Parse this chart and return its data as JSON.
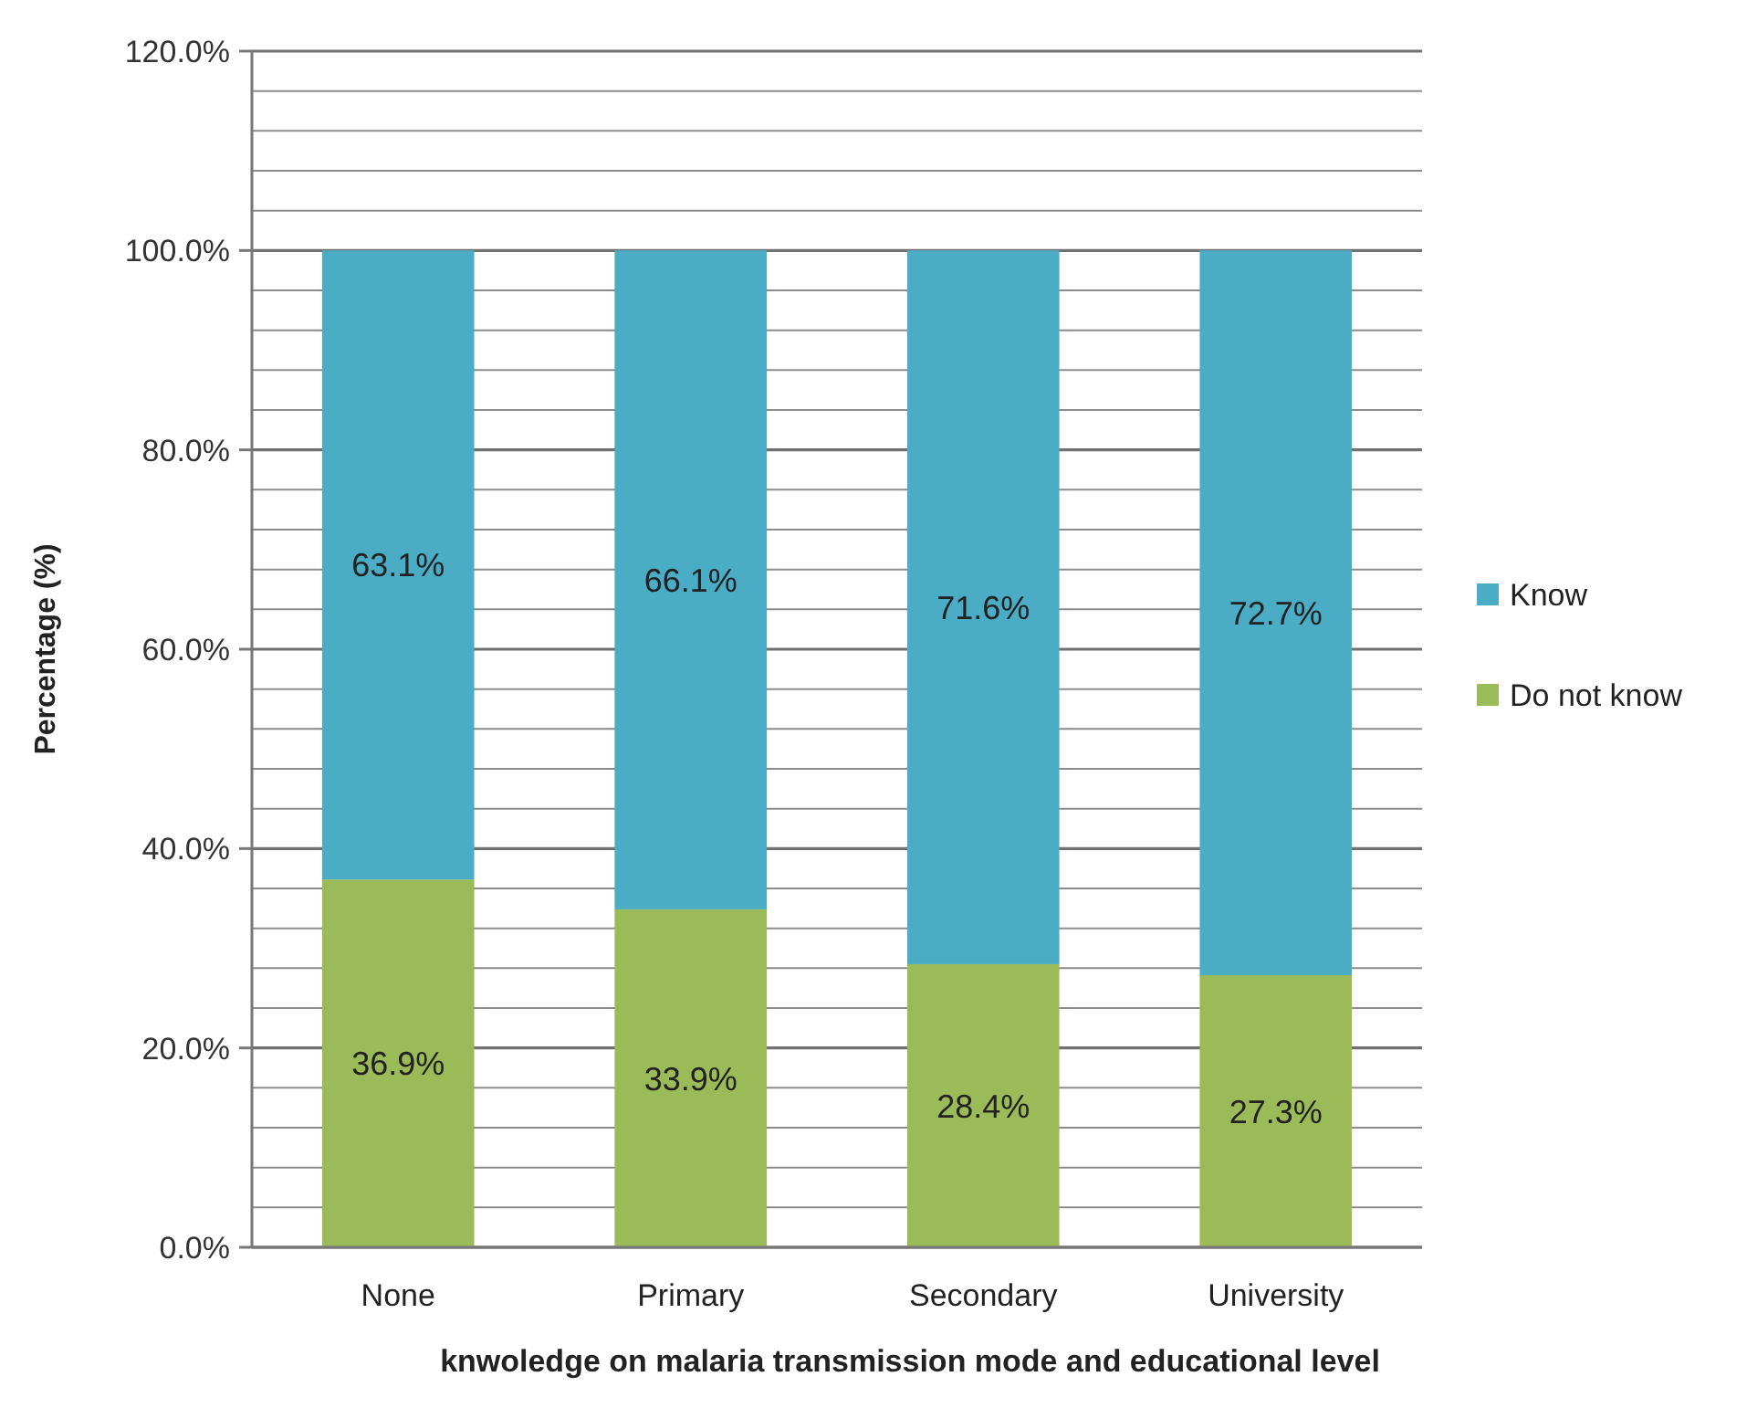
{
  "chart_data": {
    "type": "bar",
    "stacked": true,
    "xlabel": "knwoledge on malaria transmission mode and educational level",
    "ylabel": "Percentage (%)",
    "categories": [
      "None",
      "Primary",
      "Secondary",
      "University"
    ],
    "series": [
      {
        "name": "Do not know",
        "color": "#9bbb59",
        "values": [
          36.9,
          33.9,
          28.4,
          27.3
        ],
        "value_labels": [
          "36.9%",
          "33.9%",
          "28.4%",
          "27.3%"
        ]
      },
      {
        "name": "Know",
        "color": "#4bacc6",
        "values": [
          63.1,
          66.1,
          71.6,
          72.7
        ],
        "value_labels": [
          "63.1%",
          "66.1%",
          "71.6%",
          "72.7%"
        ]
      }
    ],
    "ylim": [
      0,
      120
    ],
    "yticks": [
      {
        "value": 0,
        "label": "0.0%"
      },
      {
        "value": 4,
        "label": null
      },
      {
        "value": 8,
        "label": null
      },
      {
        "value": 12,
        "label": null
      },
      {
        "value": 16,
        "label": null
      },
      {
        "value": 20,
        "label": "20.0%"
      },
      {
        "value": 24,
        "label": null
      },
      {
        "value": 28,
        "label": null
      },
      {
        "value": 32,
        "label": null
      },
      {
        "value": 36,
        "label": null
      },
      {
        "value": 40,
        "label": "40.0%"
      },
      {
        "value": 44,
        "label": null
      },
      {
        "value": 48,
        "label": null
      },
      {
        "value": 52,
        "label": null
      },
      {
        "value": 56,
        "label": null
      },
      {
        "value": 60,
        "label": "60.0%"
      },
      {
        "value": 64,
        "label": null
      },
      {
        "value": 68,
        "label": null
      },
      {
        "value": 72,
        "label": null
      },
      {
        "value": 76,
        "label": null
      },
      {
        "value": 80,
        "label": "80.0%"
      },
      {
        "value": 84,
        "label": null
      },
      {
        "value": 88,
        "label": null
      },
      {
        "value": 92,
        "label": null
      },
      {
        "value": 96,
        "label": null
      },
      {
        "value": 100,
        "label": "100.0%"
      },
      {
        "value": 104,
        "label": null
      },
      {
        "value": 108,
        "label": null
      },
      {
        "value": 112,
        "label": null
      },
      {
        "value": 116,
        "label": null
      },
      {
        "value": 120,
        "label": "120.0%"
      }
    ],
    "grid": "y",
    "legend": "right"
  }
}
